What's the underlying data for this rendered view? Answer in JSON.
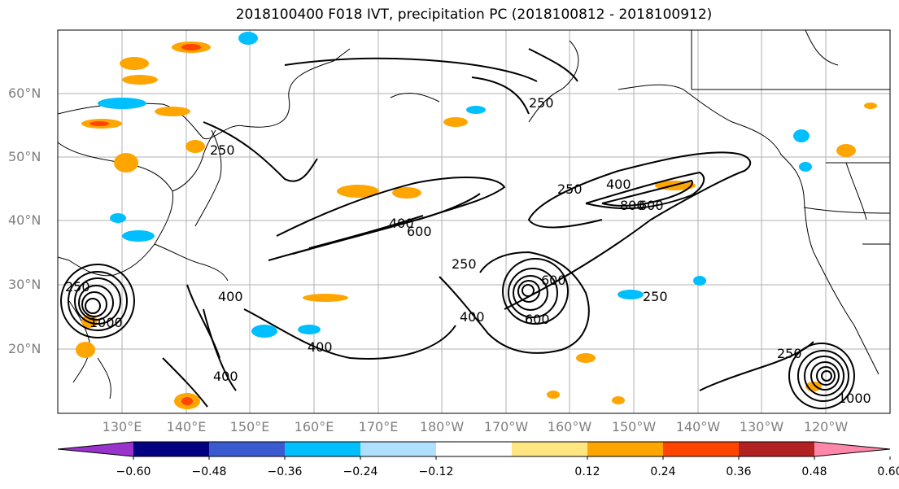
{
  "title": "2018100400 F018 IVT, precipitation PC (2018100812 - 2018100912)",
  "lat_labels": [
    "60°N",
    "50°N",
    "40°N",
    "30°N",
    "20°N"
  ],
  "lon_labels": [
    "130°E",
    "140°E",
    "150°E",
    "160°E",
    "170°E",
    "180°W",
    "170°W",
    "160°W",
    "150°W",
    "140°W",
    "130°W",
    "120°W"
  ],
  "colorbar": {
    "colors": [
      "#9933cc",
      "#000080",
      "#3a5bd0",
      "#00bfff",
      "#b0e0ff",
      "#ffffff",
      "#ffe680",
      "#ffa500",
      "#ff4500",
      "#b22222",
      "#ff88aa"
    ],
    "extend": "both",
    "tick_labels": [
      "−0.60",
      "−0.48",
      "−0.36",
      "−0.24",
      "−0.12",
      "0.12",
      "0.24",
      "0.36",
      "0.48",
      "0.60"
    ]
  },
  "contour_labels": [
    "250",
    "400",
    "600",
    "800",
    "1000"
  ],
  "map": {
    "lat_range": [
      10,
      70
    ],
    "lon_range": [
      120,
      250
    ],
    "grid": true,
    "contour_levels": [
      250,
      400,
      600,
      800,
      1000
    ]
  }
}
